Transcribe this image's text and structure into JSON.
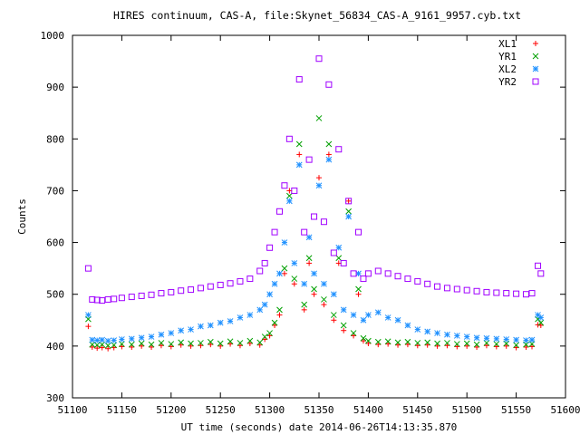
{
  "chart_data": {
    "type": "scatter",
    "title": "HIRES continuum, CAS-A, file:Skynet_56834_CAS-A_9161_9957.cyb.txt",
    "xlabel": "UT time (seconds) date 2014-06-26T14:13:35.870",
    "ylabel": "Counts",
    "xlim": [
      51100,
      51600
    ],
    "ylim": [
      300,
      1000
    ],
    "x_ticks": [
      "51100",
      "51150",
      "51200",
      "51250",
      "51300",
      "51350",
      "51400",
      "51450",
      "51500",
      "51550",
      "51600"
    ],
    "y_ticks": [
      "300",
      "400",
      "500",
      "600",
      "700",
      "800",
      "900",
      "1000"
    ],
    "grid": false,
    "legend_position": "top-right",
    "series": [
      {
        "name": "XL1",
        "marker": "plus",
        "color": "#ff0000",
        "x": [
          51116,
          51120,
          51125,
          51130,
          51136,
          51142,
          51150,
          51160,
          51170,
          51180,
          51190,
          51200,
          51210,
          51220,
          51230,
          51240,
          51250,
          51260,
          51270,
          51280,
          51290,
          51295,
          51300,
          51305,
          51310,
          51315,
          51320,
          51325,
          51330,
          51335,
          51340,
          51345,
          51350,
          51355,
          51360,
          51365,
          51370,
          51375,
          51380,
          51385,
          51390,
          51395,
          51400,
          51410,
          51420,
          51430,
          51440,
          51450,
          51460,
          51470,
          51480,
          51490,
          51500,
          51510,
          51520,
          51530,
          51540,
          51550,
          51560,
          51566,
          51572,
          51575
        ],
        "y": [
          438,
          398,
          396,
          397,
          395,
          397,
          399,
          398,
          400,
          398,
          401,
          399,
          402,
          400,
          401,
          403,
          400,
          404,
          401,
          405,
          402,
          413,
          420,
          440,
          460,
          540,
          700,
          520,
          770,
          470,
          560,
          500,
          725,
          480,
          770,
          450,
          560,
          430,
          680,
          420,
          500,
          410,
          405,
          403,
          404,
          402,
          403,
          401,
          402,
          400,
          401,
          399,
          400,
          398,
          401,
          399,
          400,
          397,
          398,
          399,
          441,
          440
        ]
      },
      {
        "name": "YR1",
        "marker": "cross",
        "color": "#00a000",
        "x": [
          51116,
          51120,
          51125,
          51130,
          51136,
          51142,
          51150,
          51160,
          51170,
          51180,
          51190,
          51200,
          51210,
          51220,
          51230,
          51240,
          51250,
          51260,
          51270,
          51280,
          51290,
          51295,
          51300,
          51305,
          51310,
          51315,
          51320,
          51325,
          51330,
          51335,
          51340,
          51345,
          51350,
          51355,
          51360,
          51365,
          51370,
          51375,
          51380,
          51385,
          51390,
          51395,
          51400,
          51410,
          51420,
          51430,
          51440,
          51450,
          51460,
          51470,
          51480,
          51490,
          51500,
          51510,
          51520,
          51530,
          51540,
          51550,
          51560,
          51566,
          51572,
          51575
        ],
        "y": [
          452,
          403,
          402,
          403,
          401,
          402,
          404,
          403,
          405,
          403,
          406,
          404,
          407,
          405,
          406,
          408,
          405,
          409,
          406,
          410,
          407,
          418,
          425,
          445,
          470,
          550,
          690,
          530,
          790,
          480,
          570,
          510,
          840,
          490,
          790,
          460,
          570,
          440,
          660,
          425,
          510,
          415,
          410,
          408,
          409,
          407,
          408,
          406,
          407,
          405,
          406,
          404,
          405,
          403,
          406,
          404,
          405,
          402,
          403,
          404,
          452,
          445
        ]
      },
      {
        "name": "XL2",
        "marker": "star",
        "color": "#1e90ff",
        "x": [
          51116,
          51120,
          51125,
          51130,
          51136,
          51142,
          51150,
          51160,
          51170,
          51180,
          51190,
          51200,
          51210,
          51220,
          51230,
          51240,
          51250,
          51260,
          51270,
          51280,
          51290,
          51295,
          51300,
          51305,
          51310,
          51315,
          51320,
          51325,
          51330,
          51335,
          51340,
          51345,
          51350,
          51355,
          51360,
          51365,
          51370,
          51375,
          51380,
          51385,
          51390,
          51395,
          51400,
          51410,
          51420,
          51430,
          51440,
          51450,
          51460,
          51470,
          51480,
          51490,
          51500,
          51510,
          51520,
          51530,
          51540,
          51550,
          51560,
          51566,
          51572,
          51575
        ],
        "y": [
          460,
          412,
          411,
          412,
          410,
          411,
          413,
          414,
          416,
          418,
          422,
          425,
          430,
          432,
          438,
          440,
          445,
          448,
          455,
          460,
          470,
          480,
          500,
          520,
          540,
          600,
          680,
          560,
          750,
          520,
          610,
          540,
          710,
          520,
          760,
          500,
          590,
          470,
          650,
          460,
          540,
          450,
          460,
          465,
          455,
          450,
          440,
          432,
          428,
          425,
          422,
          420,
          418,
          416,
          415,
          414,
          413,
          412,
          411,
          412,
          460,
          455
        ]
      },
      {
        "name": "YR2",
        "marker": "square",
        "color": "#a000ff",
        "x": [
          51116,
          51120,
          51125,
          51130,
          51136,
          51142,
          51150,
          51160,
          51170,
          51180,
          51190,
          51200,
          51210,
          51220,
          51230,
          51240,
          51250,
          51260,
          51270,
          51280,
          51290,
          51295,
          51300,
          51305,
          51310,
          51315,
          51320,
          51325,
          51330,
          51335,
          51340,
          51345,
          51350,
          51355,
          51360,
          51365,
          51370,
          51375,
          51380,
          51385,
          51390,
          51395,
          51400,
          51410,
          51420,
          51430,
          51440,
          51450,
          51460,
          51470,
          51480,
          51490,
          51500,
          51510,
          51520,
          51530,
          51540,
          51550,
          51560,
          51566,
          51572,
          51575
        ],
        "y": [
          550,
          490,
          489,
          488,
          490,
          491,
          493,
          495,
          497,
          499,
          502,
          504,
          507,
          509,
          512,
          515,
          518,
          521,
          525,
          530,
          545,
          560,
          590,
          620,
          660,
          710,
          800,
          700,
          915,
          620,
          760,
          650,
          955,
          640,
          905,
          580,
          780,
          560,
          680,
          540,
          620,
          530,
          540,
          545,
          540,
          535,
          530,
          525,
          520,
          515,
          512,
          510,
          508,
          506,
          504,
          503,
          502,
          501,
          500,
          502,
          555,
          540
        ]
      }
    ]
  }
}
